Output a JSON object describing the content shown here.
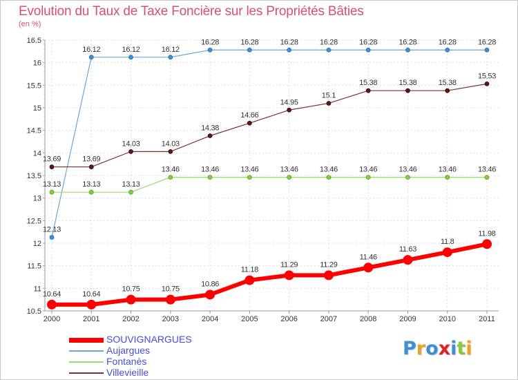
{
  "title": "Evolution du Taux de Taxe Foncière sur les Propriétés Bâties",
  "unit_label": "(en %)",
  "logo": {
    "text": "Proxiti",
    "letters": [
      "P",
      "r",
      "o",
      "x",
      "i",
      "t",
      "i"
    ],
    "colors": [
      "#3d8fd6",
      "#f0a020",
      "#3d8fd6",
      "#e0202a",
      "#3d8fd6",
      "#8dc63f",
      "#f0a020"
    ]
  },
  "chart_data": {
    "type": "line",
    "x": [
      "2000",
      "2001",
      "2002",
      "2003",
      "2004",
      "2005",
      "2006",
      "2007",
      "2008",
      "2009",
      "2010",
      "2011"
    ],
    "ylim": [
      10.5,
      16.5
    ],
    "yticks": [
      "10.5",
      "11",
      "11.5",
      "12",
      "12.5",
      "13",
      "13.5",
      "14",
      "14.5",
      "15",
      "15.5",
      "16",
      "16.5"
    ],
    "grid": true,
    "legend_position": "bottom-left",
    "series": [
      {
        "name": "SOUVIGNARGUES",
        "color": "#ff0000",
        "values": [
          10.64,
          10.64,
          10.75,
          10.75,
          10.86,
          11.18,
          11.29,
          11.29,
          11.46,
          11.63,
          11.8,
          11.98
        ],
        "labels": [
          "10.64",
          "10.64",
          "10.75",
          "10.75",
          "10.86",
          "11.18",
          "11.29",
          "11.29",
          "11.46",
          "11.63",
          "11.8",
          "11.98"
        ]
      },
      {
        "name": "Aujargues",
        "color": "#6aa6dc",
        "values": [
          12.13,
          16.12,
          16.12,
          16.12,
          16.28,
          16.28,
          16.28,
          16.28,
          16.28,
          16.28,
          16.28,
          16.28
        ],
        "labels": [
          "12.13",
          "16.12",
          "16.12",
          "16.12",
          "16.28",
          "16.28",
          "16.28",
          "16.28",
          "16.28",
          "16.28",
          "16.28",
          "16.28"
        ]
      },
      {
        "name": "Fontanès",
        "color": "#99dd66",
        "values": [
          13.13,
          13.13,
          13.13,
          13.46,
          13.46,
          13.46,
          13.46,
          13.46,
          13.46,
          13.46,
          13.46,
          13.46
        ],
        "labels": [
          "13.13",
          "13.13",
          "13.13",
          "13.46",
          "13.46",
          "13.46",
          "13.46",
          "13.46",
          "13.46",
          "13.46",
          "13.46",
          "13.46"
        ]
      },
      {
        "name": "Villevieille",
        "color": "#7a3030",
        "values": [
          13.69,
          13.69,
          14.03,
          14.03,
          14.38,
          14.66,
          14.95,
          15.1,
          15.38,
          15.38,
          15.38,
          15.53
        ],
        "labels": [
          "13.69",
          "13.69",
          "14.03",
          "14.03",
          "14.38",
          "14.66",
          "14.95",
          "15.1",
          "15.38",
          "15.38",
          "15.38",
          "15.53"
        ]
      }
    ]
  }
}
